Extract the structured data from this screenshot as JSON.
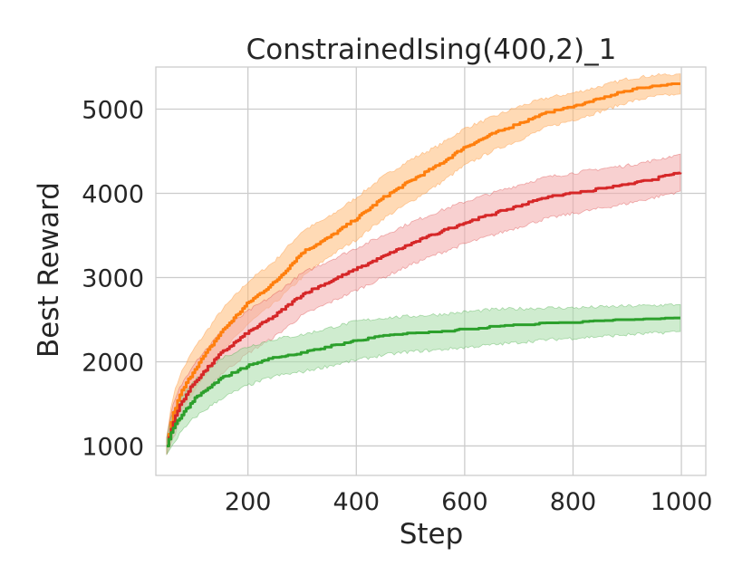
{
  "chart_data": {
    "type": "line",
    "title": "ConstrainedIsing(400,2)_1",
    "xlabel": "Step",
    "ylabel": "Best Reward",
    "xlim": [
      30,
      1045
    ],
    "ylim": [
      650,
      5500
    ],
    "xticks": [
      200,
      400,
      600,
      800,
      1000
    ],
    "xtick_labels": [
      "200",
      "400",
      "600",
      "800",
      "1000"
    ],
    "yticks": [
      1000,
      2000,
      3000,
      4000,
      5000
    ],
    "ytick_labels": [
      "1000",
      "2000",
      "3000",
      "4000",
      "5000"
    ],
    "grid": true,
    "legend": "none",
    "series": [
      {
        "color": "#ff7f0e",
        "band_color": "#ffbb78",
        "x": [
          50,
          60,
          75,
          100,
          150,
          200,
          250,
          300,
          350,
          400,
          450,
          500,
          550,
          600,
          650,
          700,
          750,
          800,
          850,
          900,
          950,
          1000
        ],
        "y": [
          1000,
          1350,
          1620,
          1900,
          2350,
          2700,
          2950,
          3300,
          3480,
          3700,
          3950,
          4150,
          4330,
          4550,
          4700,
          4830,
          4950,
          5030,
          5120,
          5220,
          5270,
          5300
        ],
        "lower": [
          900,
          1150,
          1400,
          1650,
          2100,
          2450,
          2700,
          3000,
          3250,
          3450,
          3700,
          3900,
          4100,
          4330,
          4500,
          4630,
          4780,
          4870,
          4970,
          5080,
          5150,
          5180
        ],
        "upper": [
          1100,
          1550,
          1850,
          2150,
          2600,
          2950,
          3200,
          3550,
          3720,
          3950,
          4200,
          4400,
          4560,
          4770,
          4900,
          5030,
          5130,
          5190,
          5270,
          5360,
          5400,
          5420
        ]
      },
      {
        "color": "#d62728",
        "band_color": "#f2a9a9",
        "x": [
          50,
          60,
          75,
          100,
          150,
          200,
          250,
          300,
          350,
          400,
          450,
          500,
          550,
          600,
          650,
          700,
          750,
          800,
          850,
          900,
          950,
          1000
        ],
        "y": [
          1000,
          1250,
          1500,
          1750,
          2100,
          2350,
          2550,
          2800,
          2950,
          3100,
          3250,
          3400,
          3530,
          3650,
          3750,
          3850,
          3950,
          4000,
          4050,
          4100,
          4170,
          4250
        ],
        "lower": [
          900,
          1050,
          1300,
          1520,
          1850,
          2100,
          2300,
          2550,
          2700,
          2850,
          3000,
          3150,
          3280,
          3400,
          3500,
          3600,
          3700,
          3760,
          3820,
          3880,
          3950,
          4030
        ],
        "upper": [
          1100,
          1450,
          1700,
          1980,
          2350,
          2600,
          2800,
          3050,
          3200,
          3350,
          3500,
          3650,
          3780,
          3900,
          4000,
          4100,
          4190,
          4240,
          4290,
          4330,
          4390,
          4470
        ]
      },
      {
        "color": "#2ca02c",
        "band_color": "#a8dca8",
        "x": [
          50,
          60,
          75,
          100,
          150,
          200,
          250,
          300,
          350,
          400,
          450,
          500,
          550,
          600,
          650,
          700,
          750,
          800,
          850,
          900,
          950,
          1000
        ],
        "y": [
          1000,
          1200,
          1350,
          1550,
          1800,
          1950,
          2050,
          2100,
          2180,
          2250,
          2300,
          2330,
          2350,
          2380,
          2410,
          2430,
          2450,
          2460,
          2480,
          2490,
          2500,
          2510
        ],
        "lower": [
          900,
          1000,
          1150,
          1330,
          1560,
          1720,
          1830,
          1880,
          1950,
          2020,
          2080,
          2120,
          2140,
          2170,
          2200,
          2230,
          2260,
          2280,
          2300,
          2320,
          2340,
          2360
        ],
        "upper": [
          1100,
          1400,
          1550,
          1770,
          2040,
          2180,
          2270,
          2320,
          2400,
          2480,
          2520,
          2540,
          2560,
          2590,
          2620,
          2630,
          2640,
          2640,
          2650,
          2660,
          2670,
          2680
        ]
      }
    ]
  }
}
